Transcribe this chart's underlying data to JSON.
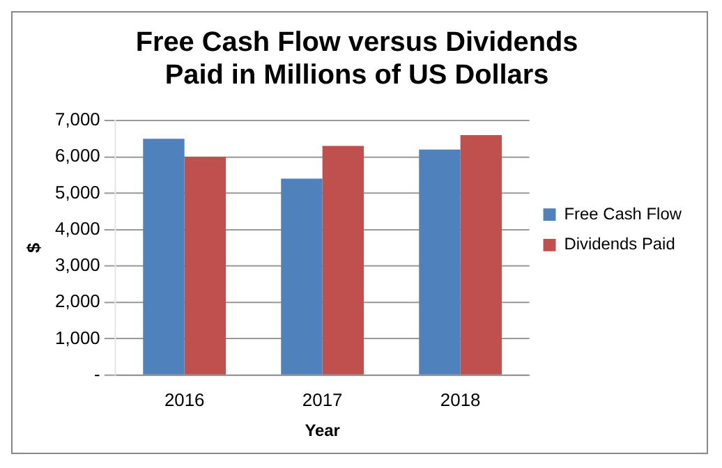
{
  "chart_data": {
    "type": "bar",
    "title": "Free Cash Flow versus Dividends Paid in Millions of US Dollars",
    "xlabel": "Year",
    "ylabel": "$",
    "categories": [
      "2016",
      "2017",
      "2018"
    ],
    "series": [
      {
        "name": "Free Cash Flow",
        "color": "#4f81bd",
        "values": [
          6500,
          5400,
          6200
        ]
      },
      {
        "name": "Dividends Paid",
        "color": "#c0504d",
        "values": [
          6000,
          6300,
          6600
        ]
      }
    ],
    "ylim": [
      0,
      7000
    ],
    "yticks": [
      {
        "value": 0,
        "label": "-"
      },
      {
        "value": 1000,
        "label": "1,000"
      },
      {
        "value": 2000,
        "label": "2,000"
      },
      {
        "value": 3000,
        "label": "3,000"
      },
      {
        "value": 4000,
        "label": "4,000"
      },
      {
        "value": 5000,
        "label": "5,000"
      },
      {
        "value": 6000,
        "label": "6,000"
      },
      {
        "value": 7000,
        "label": "7,000"
      }
    ],
    "grid": "y",
    "legend": "right"
  }
}
